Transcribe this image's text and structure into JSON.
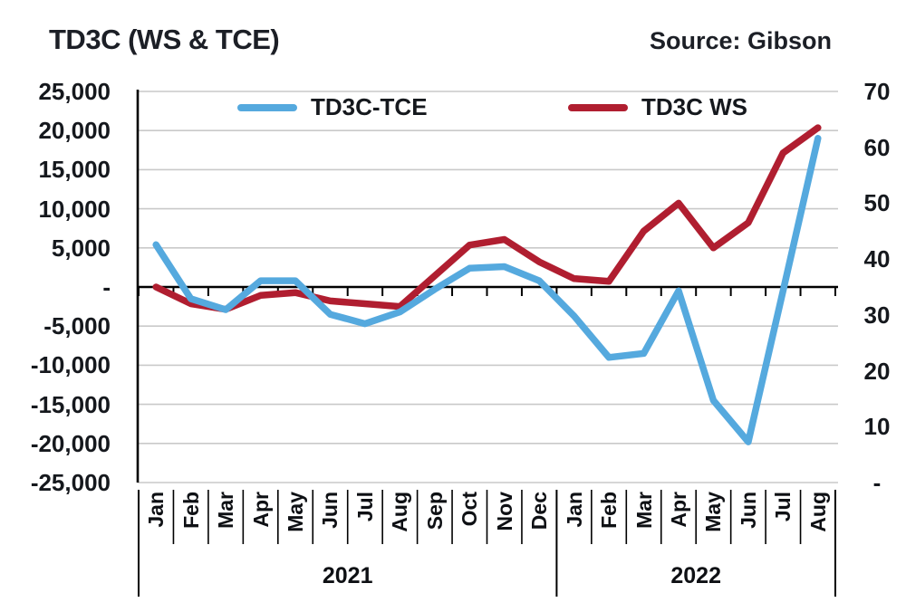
{
  "header": {
    "title": "TD3C (WS & TCE)",
    "source": "Source: Gibson"
  },
  "legend": [
    {
      "label": "TD3C-TCE",
      "color": "#55A9DE"
    },
    {
      "label": "TD3C WS",
      "color": "#B01E30"
    }
  ],
  "axes": {
    "left_ticks": [
      "25,000",
      "20,000",
      "15,000",
      "10,000",
      "5,000",
      "-",
      "-5,000",
      "-10,000",
      "-15,000",
      "-20,000",
      "-25,000"
    ],
    "right_ticks": [
      "70",
      "60",
      "50",
      "40",
      "30",
      "20",
      "10",
      "-"
    ]
  },
  "palette": {
    "grid": "#c9c9c9",
    "axis": "#000000",
    "text": "#15181d"
  },
  "chart_data": {
    "type": "line",
    "title": "TD3C (WS & TCE)",
    "source": "Source: Gibson",
    "categories": [
      "Jan",
      "Feb",
      "Mar",
      "Apr",
      "May",
      "Jun",
      "Jul",
      "Aug",
      "Sep",
      "Oct",
      "Nov",
      "Dec",
      "Jan",
      "Feb",
      "Mar",
      "Apr",
      "May",
      "Jun",
      "Jul",
      "Aug"
    ],
    "year_groups": [
      {
        "label": "2021",
        "months": 12
      },
      {
        "label": "2022",
        "months": 8
      }
    ],
    "series": [
      {
        "name": "TD3C-TCE",
        "axis": "left",
        "color": "#55A9DE",
        "values": [
          5400,
          -1500,
          -2900,
          800,
          800,
          -3500,
          -4700,
          -3200,
          -300,
          2400,
          2600,
          800,
          -3700,
          -9000,
          -8500,
          -500,
          -14500,
          -19800,
          -500,
          19000
        ]
      },
      {
        "name": "TD3C WS",
        "axis": "right",
        "color": "#B01E30",
        "values": [
          35,
          32,
          31,
          33.5,
          34,
          32.5,
          32,
          31.5,
          37,
          42.5,
          43.5,
          39.5,
          36.5,
          36,
          45,
          50,
          42,
          46.5,
          59,
          63.5
        ]
      }
    ],
    "left_axis": {
      "min": -25000,
      "max": 25000,
      "tick_step": 5000
    },
    "right_axis": {
      "min": 0,
      "max": 70,
      "tick_step": 10
    },
    "grid": true,
    "legend_position": "top-inside"
  }
}
